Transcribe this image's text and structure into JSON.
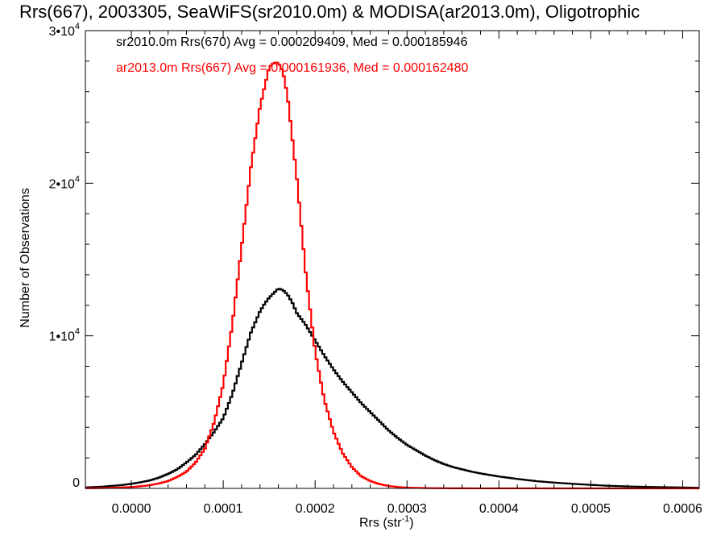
{
  "chart_data": {
    "type": "histogram",
    "title": "Rrs(667), 2003305, SeaWiFS(sr2010.0m) & MODISA(ar2013.0m), Oligotrophic",
    "xlabel_base": "Rrs (str",
    "xlabel_exp": "-1",
    "xlabel_close": ")",
    "ylabel": "Number of Observations",
    "xlim": [
      -5e-05,
      0.000618
    ],
    "ylim": [
      0,
      30000
    ],
    "grid": false,
    "x_ticks": [
      {
        "value": 0.0,
        "label": "0.0000"
      },
      {
        "value": 0.0001,
        "label": "0.0001"
      },
      {
        "value": 0.0002,
        "label": "0.0002"
      },
      {
        "value": 0.0003,
        "label": "0.0003"
      },
      {
        "value": 0.0004,
        "label": "0.0004"
      },
      {
        "value": 0.0005,
        "label": "0.0005"
      },
      {
        "value": 0.0006,
        "label": "0.0006"
      }
    ],
    "y_ticks": [
      {
        "value": 0,
        "mant": "0",
        "exp": ""
      },
      {
        "value": 10000,
        "mant": "1•10",
        "exp": "4"
      },
      {
        "value": 20000,
        "mant": "2•10",
        "exp": "4"
      },
      {
        "value": 30000,
        "mant": "3•10",
        "exp": "4"
      }
    ],
    "series": [
      {
        "label": "sr2010.0m Rrs(670) Avg = 0.000209409, Med = 0.000185946",
        "color": "#000000",
        "x": [
          -5e-05,
          -4e-05,
          -3e-05,
          -2e-05,
          -1e-05,
          0.0,
          1e-05,
          2e-05,
          3e-05,
          4e-05,
          5e-05,
          6e-05,
          7e-05,
          8e-05,
          9e-05,
          0.0001,
          0.00011,
          0.00012,
          0.00013,
          0.00014,
          0.000145,
          0.00015,
          0.000155,
          0.00016,
          0.000165,
          0.00017,
          0.000175,
          0.00018,
          0.00019,
          0.0002,
          0.00021,
          0.00022,
          0.00023,
          0.00024,
          0.00025,
          0.00026,
          0.00027,
          0.00028,
          0.00029,
          0.0003,
          0.00031,
          0.00032,
          0.00033,
          0.00034,
          0.00035,
          0.00036,
          0.00037,
          0.00038,
          0.0004,
          0.00042,
          0.00044,
          0.00046,
          0.00048,
          0.0005,
          0.00052,
          0.00054,
          0.00056,
          0.00058,
          0.0006,
          0.000618
        ],
        "values": [
          60,
          90,
          120,
          170,
          220,
          300,
          400,
          520,
          700,
          950,
          1250,
          1700,
          2200,
          2900,
          3700,
          4600,
          6200,
          8200,
          10200,
          11600,
          12100,
          12500,
          12800,
          13100,
          13000,
          12700,
          12200,
          11500,
          10700,
          9700,
          8700,
          7800,
          7000,
          6300,
          5600,
          5000,
          4400,
          3800,
          3300,
          2850,
          2500,
          2150,
          1850,
          1600,
          1400,
          1250,
          1100,
          980,
          780,
          620,
          480,
          380,
          300,
          230,
          170,
          130,
          100,
          80,
          60,
          40
        ]
      },
      {
        "label": "ar2013.0m Rrs(667) Avg = 0.000161936, Med = 0.000162480",
        "color": "#ff0000",
        "x": [
          -5e-05,
          -4e-05,
          -3e-05,
          -2e-05,
          -1e-05,
          0.0,
          1e-05,
          2e-05,
          3e-05,
          4e-05,
          5e-05,
          6e-05,
          7e-05,
          8e-05,
          9e-05,
          0.0001,
          0.00011,
          0.00012,
          0.00013,
          0.00014,
          0.00015,
          0.000155,
          0.00016,
          0.000165,
          0.00017,
          0.00018,
          0.00019,
          0.0002,
          0.00021,
          0.00022,
          0.00023,
          0.00024,
          0.00025,
          0.00026,
          0.00027,
          0.00028,
          0.00029,
          0.0003,
          0.00032,
          0.00034,
          0.00036,
          0.0004,
          0.0005,
          0.000618
        ],
        "values": [
          10,
          15,
          25,
          40,
          60,
          90,
          140,
          210,
          320,
          480,
          750,
          1100,
          1700,
          2600,
          4300,
          6800,
          10800,
          15800,
          21000,
          25000,
          27600,
          27900,
          27900,
          27300,
          25700,
          20400,
          14000,
          9000,
          5800,
          3700,
          2300,
          1400,
          800,
          480,
          280,
          160,
          90,
          50,
          20,
          10,
          5,
          3,
          1,
          0
        ]
      }
    ]
  }
}
